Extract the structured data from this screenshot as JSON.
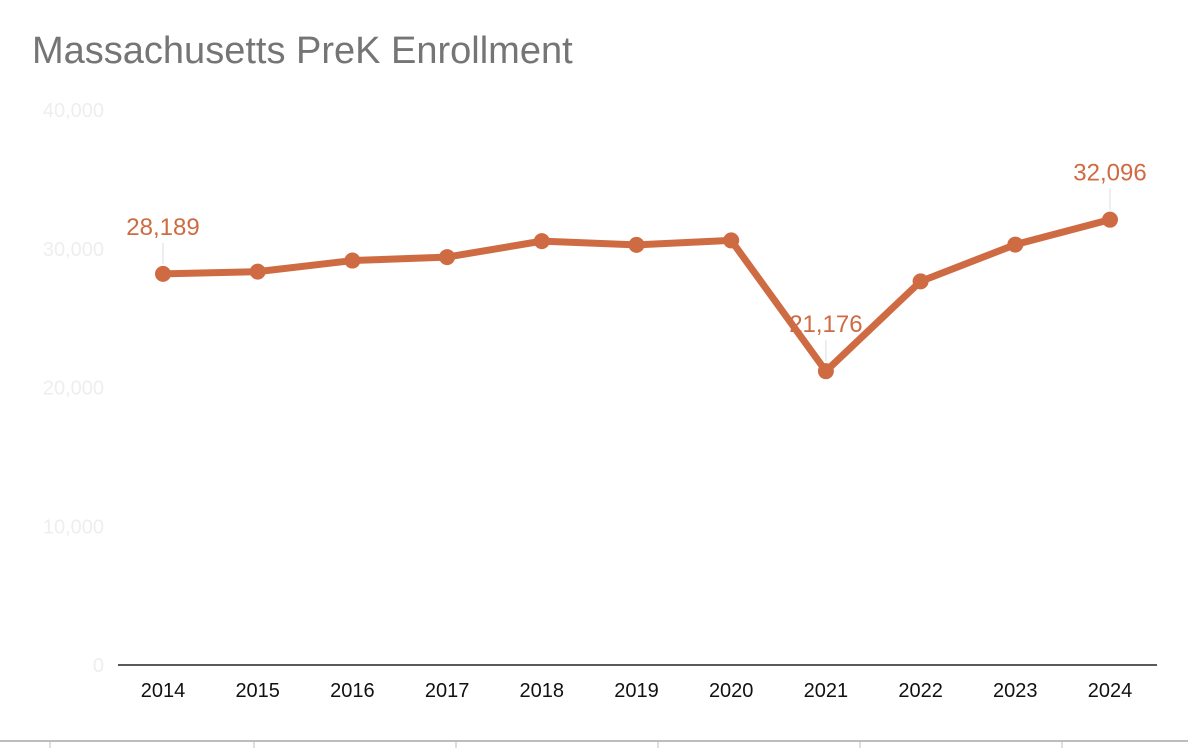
{
  "chart_data": {
    "type": "line",
    "title": "Massachusetts PreK Enrollment",
    "xlabel": "",
    "ylabel": "",
    "ylim": [
      0,
      40000
    ],
    "yticks": [
      0,
      10000,
      20000,
      30000,
      40000
    ],
    "ytick_labels": [
      "0",
      "10,000",
      "20,000",
      "30,000",
      "40,000"
    ],
    "categories": [
      "2014",
      "2015",
      "2016",
      "2017",
      "2018",
      "2019",
      "2020",
      "2021",
      "2022",
      "2023",
      "2024"
    ],
    "series": [
      {
        "values": [
          28189,
          28350,
          29150,
          29400,
          30550,
          30280,
          30600,
          21176,
          27650,
          30300,
          32096
        ]
      }
    ],
    "data_labels": [
      {
        "index": 0,
        "text": "28,189"
      },
      {
        "index": 7,
        "text": "21,176"
      },
      {
        "index": 10,
        "text": "32,096"
      }
    ],
    "line_color": "#cf6b43",
    "grid": false,
    "legend": "none"
  }
}
